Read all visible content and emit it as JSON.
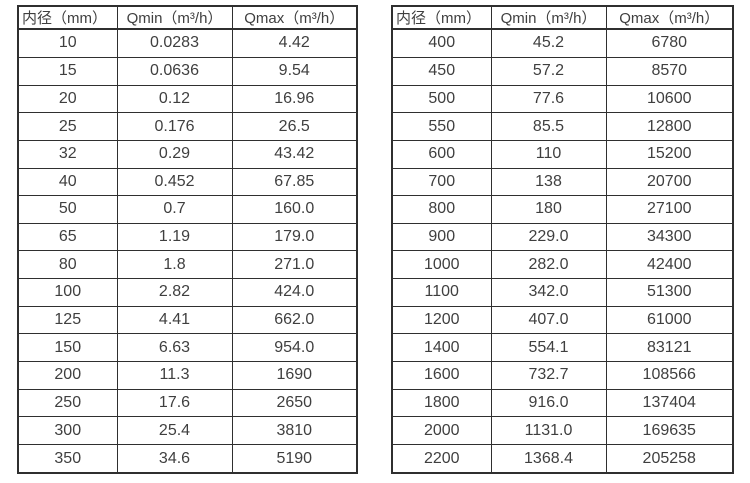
{
  "page": {
    "background": "#ffffff",
    "text_color": "#3f3f3f",
    "border_color": "#2f2f2f"
  },
  "chart_data": [
    {
      "type": "table",
      "name": "flow-rate-spec-table-small-diameters",
      "columns": [
        "内径（mm）",
        "Qmin（m³/h）",
        "Qmax（m³/h）"
      ],
      "rows": [
        [
          "10",
          "0.0283",
          "4.42"
        ],
        [
          "15",
          "0.0636",
          "9.54"
        ],
        [
          "20",
          "0.12",
          "16.96"
        ],
        [
          "25",
          "0.176",
          "26.5"
        ],
        [
          "32",
          "0.29",
          "43.42"
        ],
        [
          "40",
          "0.452",
          "67.85"
        ],
        [
          "50",
          "0.7",
          "160.0"
        ],
        [
          "65",
          "1.19",
          "179.0"
        ],
        [
          "80",
          "1.8",
          "271.0"
        ],
        [
          "100",
          "2.82",
          "424.0"
        ],
        [
          "125",
          "4.41",
          "662.0"
        ],
        [
          "150",
          "6.63",
          "954.0"
        ],
        [
          "200",
          "11.3",
          "1690"
        ],
        [
          "250",
          "17.6",
          "2650"
        ],
        [
          "300",
          "25.4",
          "3810"
        ],
        [
          "350",
          "34.6",
          "5190"
        ]
      ]
    },
    {
      "type": "table",
      "name": "flow-rate-spec-table-large-diameters",
      "columns": [
        "内径（mm）",
        "Qmin（m³/h）",
        "Qmax（m³/h）"
      ],
      "rows": [
        [
          "400",
          "45.2",
          "6780"
        ],
        [
          "450",
          "57.2",
          "8570"
        ],
        [
          "500",
          "77.6",
          "10600"
        ],
        [
          "550",
          "85.5",
          "12800"
        ],
        [
          "600",
          "110",
          "15200"
        ],
        [
          "700",
          "138",
          "20700"
        ],
        [
          "800",
          "180",
          "27100"
        ],
        [
          "900",
          "229.0",
          "34300"
        ],
        [
          "1000",
          "282.0",
          "42400"
        ],
        [
          "1100",
          "342.0",
          "51300"
        ],
        [
          "1200",
          "407.0",
          "61000"
        ],
        [
          "1400",
          "554.1",
          "83121"
        ],
        [
          "1600",
          "732.7",
          "108566"
        ],
        [
          "1800",
          "916.0",
          "137404"
        ],
        [
          "2000",
          "1131.0",
          "169635"
        ],
        [
          "2200",
          "1368.4",
          "205258"
        ]
      ]
    }
  ]
}
